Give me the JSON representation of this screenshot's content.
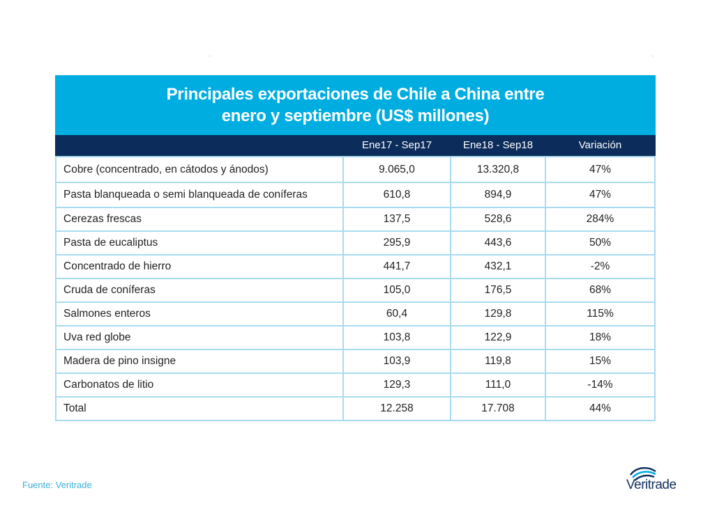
{
  "chart_data": {
    "type": "table",
    "title_lines": [
      "Principales exportaciones de Chile a China entre",
      "enero y septiembre (US$ millones)"
    ],
    "columns": [
      "",
      "Ene17 - Sep17",
      "Ene18 - Sep18",
      "Variación"
    ],
    "rows": [
      [
        "Cobre (concentrado, en cátodos y ánodos)",
        "9.065,0",
        "13.320,8",
        "47%"
      ],
      [
        "Pasta blanqueada o semi blanqueada de coníferas",
        "610,8",
        "894,9",
        "47%"
      ],
      [
        "Cerezas frescas",
        "137,5",
        "528,6",
        "284%"
      ],
      [
        "Pasta de eucaliptus",
        "295,9",
        "443,6",
        "50%"
      ],
      [
        "Concentrado de hierro",
        "441,7",
        "432,1",
        "-2%"
      ],
      [
        "Cruda de coníferas",
        "105,0",
        "176,5",
        "68%"
      ],
      [
        "Salmones enteros",
        "60,4",
        "129,8",
        "115%"
      ],
      [
        "Uva red globe",
        "103,8",
        "122,9",
        "18%"
      ],
      [
        "Madera de pino insigne",
        "103,9",
        "119,8",
        "15%"
      ],
      [
        "Carbonatos de litio",
        "129,3",
        "111,0",
        "-14%"
      ],
      [
        "Total",
        "12.258",
        "17.708",
        "44%"
      ]
    ]
  },
  "footer": {
    "source": "Fuente: Veritrade"
  },
  "logo": {
    "name": "veritrade-logo",
    "text": "Veritrade"
  },
  "colors": {
    "title_bg": "#00ade1",
    "header_bg": "#0c2d5b",
    "grid": "#a9dbf0",
    "source_text": "#3ab0d8",
    "logo_text": "#12305e"
  }
}
